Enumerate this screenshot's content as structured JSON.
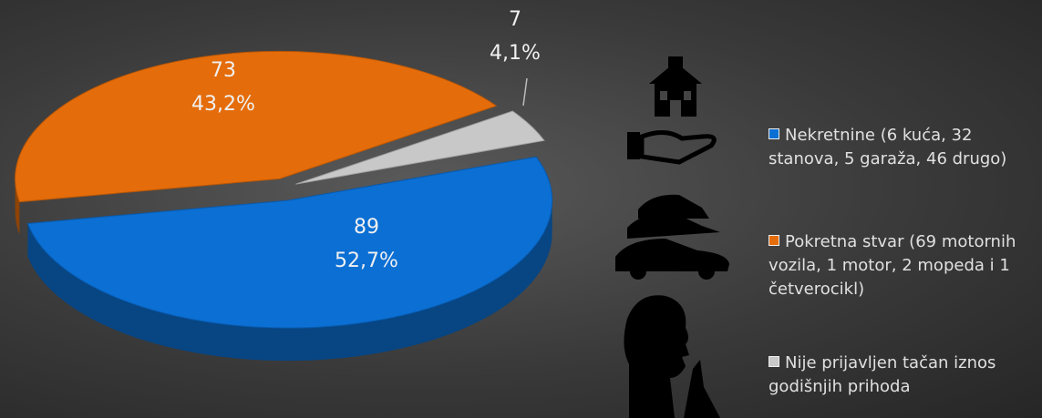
{
  "chart_data": {
    "type": "pie",
    "categories": [
      "Nekretnine (6 kuća, 32 stanova, 5 garaža, 46 drugo)",
      "Pokretna stvar (69 motornih vozila, 1 motor, 2 mopeda i 1 četverocikl)",
      "Nije prijavljen tačan iznos godišnjih prihoda"
    ],
    "values": [
      89,
      73,
      7
    ],
    "percentages": [
      52.7,
      43.2,
      4.1
    ],
    "percentage_labels": [
      "52,7%",
      "43,2%",
      "4,1%"
    ],
    "colors": [
      "#0b6fd4",
      "#e46c0a",
      "#c8c8c8"
    ],
    "legend": "right"
  }
}
